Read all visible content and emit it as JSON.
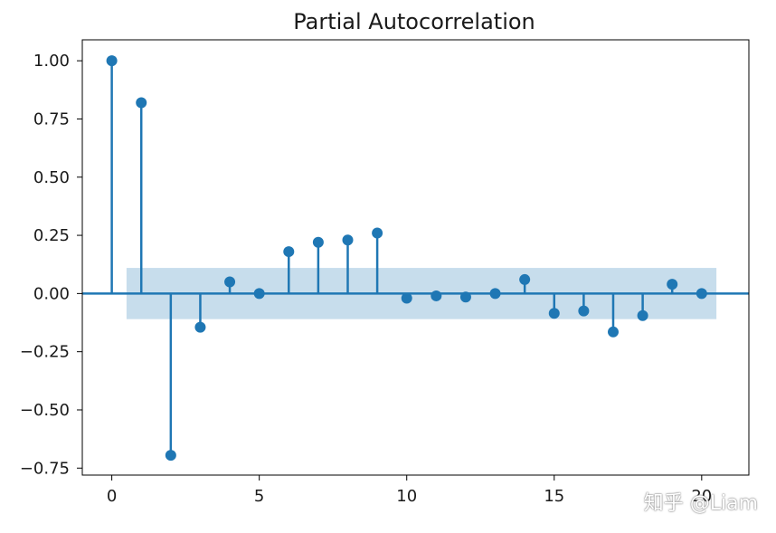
{
  "chart_data": {
    "type": "stem",
    "title": "Partial Autocorrelation",
    "x": [
      0,
      1,
      2,
      3,
      4,
      5,
      6,
      7,
      8,
      9,
      10,
      11,
      12,
      13,
      14,
      15,
      16,
      17,
      18,
      19,
      20
    ],
    "values": [
      1.0,
      0.82,
      -0.695,
      -0.145,
      0.05,
      0.0,
      0.18,
      0.22,
      0.23,
      0.26,
      -0.02,
      -0.01,
      -0.015,
      0.0,
      0.06,
      -0.085,
      -0.075,
      -0.165,
      -0.095,
      0.04,
      0.0
    ],
    "confidence_band": {
      "lower": -0.11,
      "upper": 0.11,
      "x_start": 0.5,
      "x_end": 20.5
    },
    "xlim": [
      -1,
      21.6
    ],
    "ylim": [
      -0.78,
      1.09
    ],
    "x_ticks": [
      0,
      5,
      10,
      15,
      20
    ],
    "x_tick_labels": [
      "0",
      "5",
      "10",
      "15",
      "20"
    ],
    "y_ticks": [
      1.0,
      0.75,
      0.5,
      0.25,
      0.0,
      -0.25,
      -0.5,
      -0.75
    ],
    "y_tick_labels": [
      "1.00",
      "0.75",
      "0.50",
      "0.25",
      "0.00",
      "−0.25",
      "−0.50",
      "−0.75"
    ],
    "colors": {
      "stem": "#1f77b4",
      "band": "#1f77b4"
    },
    "grid": false,
    "legend": "none"
  },
  "watermark": "知乎 @Liam"
}
